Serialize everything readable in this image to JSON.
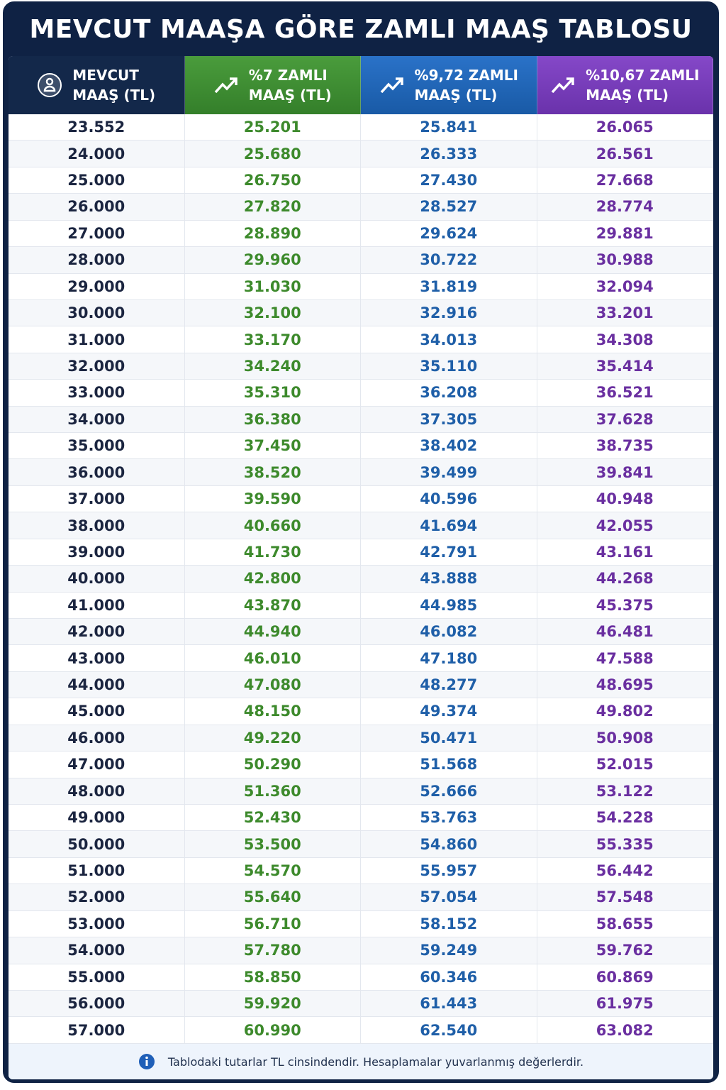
{
  "title": "MEVCUT MAAŞA GÖRE ZAMLI MAAŞ TABLOSU",
  "table": {
    "headers": [
      [
        "MEVCUT",
        "MAAŞ (TL)"
      ],
      [
        "%7 ZAMLI",
        "MAAŞ (TL)"
      ],
      [
        "%9,72 ZAMLI",
        "MAAŞ (TL)"
      ],
      [
        "%10,67 ZAMLI",
        "MAAŞ (TL)"
      ]
    ],
    "rows": [
      [
        "23.552",
        "25.201",
        "25.841",
        "26.065"
      ],
      [
        "24.000",
        "25.680",
        "26.333",
        "26.561"
      ],
      [
        "25.000",
        "26.750",
        "27.430",
        "27.668"
      ],
      [
        "26.000",
        "27.820",
        "28.527",
        "28.774"
      ],
      [
        "27.000",
        "28.890",
        "29.624",
        "29.881"
      ],
      [
        "28.000",
        "29.960",
        "30.722",
        "30.988"
      ],
      [
        "29.000",
        "31.030",
        "31.819",
        "32.094"
      ],
      [
        "30.000",
        "32.100",
        "32.916",
        "33.201"
      ],
      [
        "31.000",
        "33.170",
        "34.013",
        "34.308"
      ],
      [
        "32.000",
        "34.240",
        "35.110",
        "35.414"
      ],
      [
        "33.000",
        "35.310",
        "36.208",
        "36.521"
      ],
      [
        "34.000",
        "36.380",
        "37.305",
        "37.628"
      ],
      [
        "35.000",
        "37.450",
        "38.402",
        "38.735"
      ],
      [
        "36.000",
        "38.520",
        "39.499",
        "39.841"
      ],
      [
        "37.000",
        "39.590",
        "40.596",
        "40.948"
      ],
      [
        "38.000",
        "40.660",
        "41.694",
        "42.055"
      ],
      [
        "39.000",
        "41.730",
        "42.791",
        "43.161"
      ],
      [
        "40.000",
        "42.800",
        "43.888",
        "44.268"
      ],
      [
        "41.000",
        "43.870",
        "44.985",
        "45.375"
      ],
      [
        "42.000",
        "44.940",
        "46.082",
        "46.481"
      ],
      [
        "43.000",
        "46.010",
        "47.180",
        "47.588"
      ],
      [
        "44.000",
        "47.080",
        "48.277",
        "48.695"
      ],
      [
        "45.000",
        "48.150",
        "49.374",
        "49.802"
      ],
      [
        "46.000",
        "49.220",
        "50.471",
        "50.908"
      ],
      [
        "47.000",
        "50.290",
        "51.568",
        "52.015"
      ],
      [
        "48.000",
        "51.360",
        "52.666",
        "53.122"
      ],
      [
        "49.000",
        "52.430",
        "53.763",
        "54.228"
      ],
      [
        "50.000",
        "53.500",
        "54.860",
        "55.335"
      ],
      [
        "51.000",
        "54.570",
        "55.957",
        "56.442"
      ],
      [
        "52.000",
        "55.640",
        "57.054",
        "57.548"
      ],
      [
        "53.000",
        "56.710",
        "58.152",
        "58.655"
      ],
      [
        "54.000",
        "57.780",
        "59.249",
        "59.762"
      ],
      [
        "55.000",
        "58.850",
        "60.346",
        "60.869"
      ],
      [
        "56.000",
        "59.920",
        "61.443",
        "61.975"
      ],
      [
        "57.000",
        "60.990",
        "62.540",
        "63.082"
      ]
    ]
  },
  "footer": "Tablodaki tutarlar TL cinsindendir. Hesaplamalar yuvarlanmış değerlerdir."
}
